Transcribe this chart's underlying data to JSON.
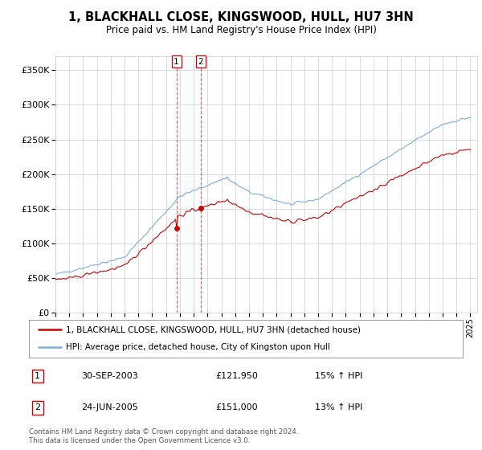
{
  "title": "1, BLACKHALL CLOSE, KINGSWOOD, HULL, HU7 3HN",
  "subtitle": "Price paid vs. HM Land Registry's House Price Index (HPI)",
  "legend_line1": "1, BLACKHALL CLOSE, KINGSWOOD, HULL, HU7 3HN (detached house)",
  "legend_line2": "HPI: Average price, detached house, City of Kingston upon Hull",
  "footnote": "Contains HM Land Registry data © Crown copyright and database right 2024.\nThis data is licensed under the Open Government Licence v3.0.",
  "transaction1_date": "30-SEP-2003",
  "transaction1_price": "£121,950",
  "transaction1_hpi": "15% ↑ HPI",
  "transaction2_date": "24-JUN-2005",
  "transaction2_price": "£151,000",
  "transaction2_hpi": "13% ↑ HPI",
  "transaction1_year": 2003.75,
  "transaction2_year": 2005.5,
  "transaction1_value": 121950,
  "transaction2_value": 151000,
  "red_color": "#cc0000",
  "blue_color": "#7aaddd",
  "grid_color": "#cccccc",
  "background_color": "#ffffff",
  "ylim": [
    0,
    370000
  ],
  "xlim_start": 1995,
  "xlim_end": 2025.5
}
